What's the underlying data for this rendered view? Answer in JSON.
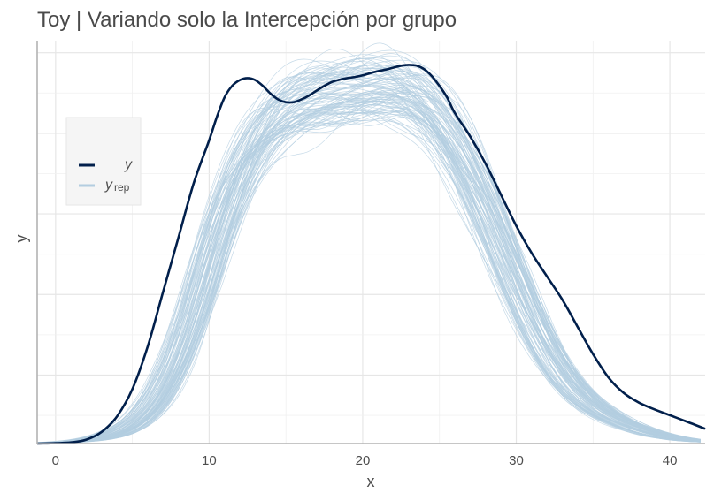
{
  "chart_data": {
    "type": "line",
    "title": "Toy | Variando solo la Intercepción por grupo",
    "xlabel": "x",
    "ylabel": "y",
    "xlim": [
      -1.2,
      42.3
    ],
    "ylim": [
      0,
      1
    ],
    "x_ticks": [
      "0",
      "10",
      "20",
      "30",
      "40"
    ],
    "x_tick_values": [
      0,
      10,
      20,
      30,
      40
    ],
    "y_ticks_shown": false,
    "grid": true,
    "legend_position": "left",
    "legend": {
      "y_label": "y",
      "yrep_label_main": "y",
      "yrep_label_sub": "rep"
    },
    "series": [
      {
        "name": "y",
        "color": "#011f4b",
        "x": [
          -1.2,
          0,
          1,
          2,
          3,
          4,
          5,
          6,
          7,
          8,
          9,
          10,
          10.5,
          11,
          11.5,
          12,
          12.5,
          13,
          13.5,
          14,
          14.5,
          15,
          15.5,
          16,
          16.5,
          17,
          17.5,
          18,
          18.5,
          19,
          19.5,
          20,
          20.5,
          21,
          21.5,
          22,
          22.5,
          23,
          23.5,
          24,
          24.5,
          25,
          25.5,
          26,
          27,
          28,
          29,
          30,
          31,
          32,
          33,
          34,
          35,
          36,
          37,
          38,
          39,
          40,
          41,
          42.3
        ],
        "y": [
          0.0,
          0.001,
          0.003,
          0.01,
          0.03,
          0.07,
          0.14,
          0.25,
          0.39,
          0.53,
          0.67,
          0.78,
          0.84,
          0.89,
          0.92,
          0.935,
          0.94,
          0.935,
          0.92,
          0.9,
          0.885,
          0.878,
          0.878,
          0.885,
          0.895,
          0.908,
          0.92,
          0.93,
          0.936,
          0.94,
          0.943,
          0.947,
          0.953,
          0.958,
          0.962,
          0.967,
          0.972,
          0.974,
          0.972,
          0.963,
          0.945,
          0.92,
          0.89,
          0.85,
          0.79,
          0.72,
          0.64,
          0.56,
          0.49,
          0.43,
          0.37,
          0.3,
          0.23,
          0.17,
          0.13,
          0.105,
          0.088,
          0.073,
          0.058,
          0.038
        ]
      }
    ],
    "yrep": {
      "name": "y_rep",
      "color": "#b3cde0",
      "n_draws": 100
    }
  }
}
